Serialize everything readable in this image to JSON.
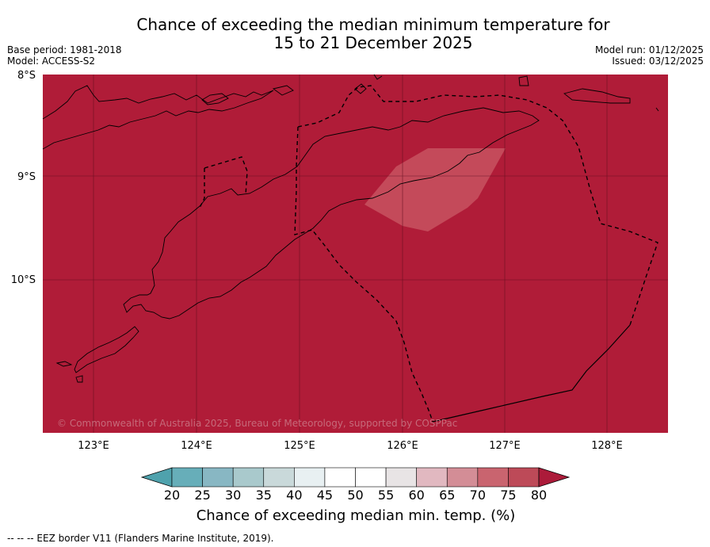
{
  "title_line1": "Chance of exceeding the median minimum temperature for",
  "title_line2": "15 to 21 December 2025",
  "base_period": "Base period: 1981-2018",
  "model": "Model: ACCESS-S2",
  "model_run": "Model run: 01/12/2025",
  "issued": "Issued: 03/12/2025",
  "copyright": "© Commonwealth of Australia 2025, Bureau of Meteorology, supported by COSPPac",
  "colors": {
    "background_field": "#b01c38",
    "light_patch": "#c44a5a",
    "coast": "#000000",
    "grid": "#5a0b1c"
  },
  "lat_labels": [
    "8°S",
    "9°S",
    "10°S"
  ],
  "lon_labels": [
    "123°E",
    "124°E",
    "125°E",
    "126°E",
    "127°E",
    "128°E"
  ],
  "colorbar": {
    "ticks": [
      "20",
      "25",
      "30",
      "35",
      "40",
      "45",
      "50",
      "55",
      "60",
      "65",
      "70",
      "75",
      "80"
    ],
    "bin_colors": [
      "#67aeb9",
      "#88b7c3",
      "#a9c9cc",
      "#c9d9da",
      "#e8f0f2",
      "#ffffff",
      "#ffffff",
      "#e8e4e5",
      "#e1b8c0",
      "#d38d96",
      "#c9646f",
      "#bd4a58"
    ],
    "under_color": "#4fa2ad",
    "over_color": "#ac1b3a",
    "label": "Chance of exceeding median min. temp. (%)"
  },
  "footnote": "--  --  -- EEZ border V11 (Flanders Marine Institute, 2019)."
}
